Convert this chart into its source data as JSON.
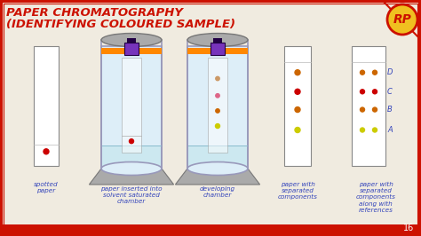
{
  "title_line1": "PAPER CHROMATOGRAPHY",
  "title_line2": "(IDENTIFYING COLOURED SAMPLE)",
  "title_color": "#cc1100",
  "title_fontsize": 9.5,
  "bg_color": "#f0ebe0",
  "border_color_outer": "#cc1100",
  "page_number": "16",
  "rp_circle_color": "#f0c020",
  "rp_border_color": "#cc1100",
  "label_color": "#3344bb",
  "label_fontsize": 5.2,
  "spot_color_red": "#cc0000",
  "spot_color_orange": "#cc6600",
  "spot_color_yellow": "#cccc00",
  "spot_color_pink": "#dd6688",
  "spot_color_tan": "#cc9966",
  "solvent_color": "#cce8f0",
  "cylinder_outline": "#9999bb",
  "cylinder_fill": "#ddeef8",
  "cylinder_cap_color": "#aaaaaa",
  "orange_band_color": "#ff8800",
  "clip_color": "#7733bb",
  "paper_outline": "#888888",
  "paper_fill": "#ffffff",
  "base_color": "#aaaaaa",
  "base_edge": "#777777"
}
